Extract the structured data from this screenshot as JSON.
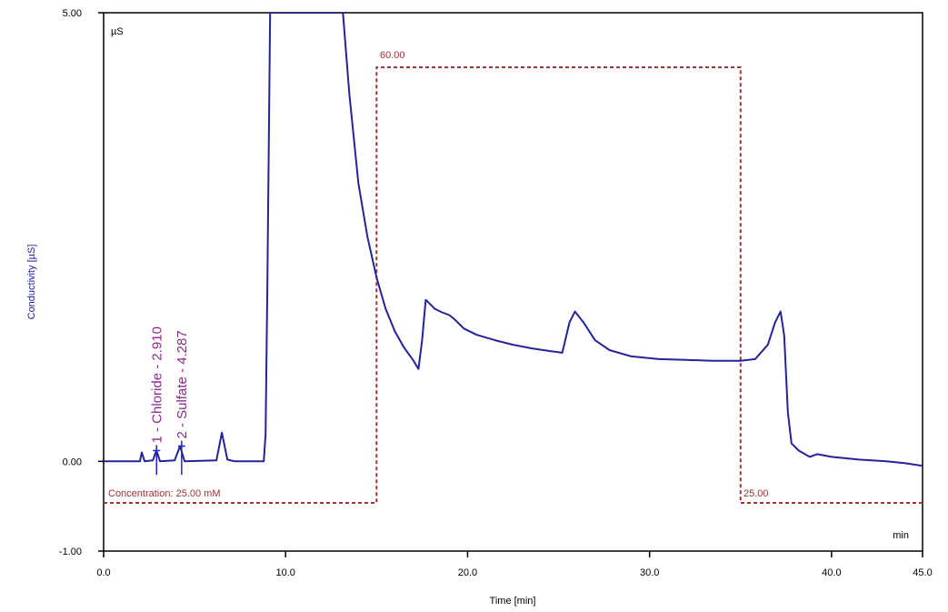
{
  "chart_data": {
    "type": "line",
    "xlabel": "Time [min]",
    "ylabel": "Conductivity [µS]",
    "unit_x": "min",
    "unit_y": "µS",
    "xlim": [
      0,
      45
    ],
    "ylim": [
      -1.0,
      5.0
    ],
    "x_ticks": [
      "0.0",
      "10.0",
      "20.0",
      "30.0",
      "40.0",
      "45.0"
    ],
    "y_ticks": [
      "-1.00",
      "0.00",
      "5.00"
    ],
    "grid": false,
    "series": [
      {
        "name": "Conductivity",
        "color": "#23239a",
        "points": [
          [
            0.0,
            0.0
          ],
          [
            2.0,
            0.0
          ],
          [
            2.1,
            0.1
          ],
          [
            2.25,
            0.0
          ],
          [
            2.7,
            0.01
          ],
          [
            2.9,
            0.12
          ],
          [
            3.1,
            0.0
          ],
          [
            3.9,
            0.01
          ],
          [
            4.2,
            0.17
          ],
          [
            4.45,
            0.0
          ],
          [
            6.2,
            0.01
          ],
          [
            6.5,
            0.32
          ],
          [
            6.8,
            0.02
          ],
          [
            7.2,
            0.0
          ],
          [
            8.8,
            0.0
          ],
          [
            8.9,
            0.3
          ],
          [
            9.0,
            2.0
          ],
          [
            9.15,
            5.0
          ],
          [
            13.15,
            5.0
          ],
          [
            13.5,
            4.1
          ],
          [
            14.0,
            3.1
          ],
          [
            14.5,
            2.5
          ],
          [
            15.0,
            2.05
          ],
          [
            15.5,
            1.7
          ],
          [
            16.0,
            1.45
          ],
          [
            16.5,
            1.27
          ],
          [
            17.0,
            1.13
          ],
          [
            17.3,
            1.03
          ],
          [
            17.5,
            1.35
          ],
          [
            17.7,
            1.8
          ],
          [
            18.2,
            1.7
          ],
          [
            18.6,
            1.66
          ],
          [
            19.0,
            1.63
          ],
          [
            19.3,
            1.58
          ],
          [
            19.8,
            1.48
          ],
          [
            20.5,
            1.41
          ],
          [
            21.5,
            1.35
          ],
          [
            22.5,
            1.3
          ],
          [
            23.5,
            1.26
          ],
          [
            24.5,
            1.23
          ],
          [
            25.2,
            1.21
          ],
          [
            25.6,
            1.55
          ],
          [
            25.9,
            1.67
          ],
          [
            26.4,
            1.54
          ],
          [
            27.0,
            1.35
          ],
          [
            27.8,
            1.24
          ],
          [
            29.0,
            1.17
          ],
          [
            30.5,
            1.14
          ],
          [
            32.0,
            1.13
          ],
          [
            33.5,
            1.12
          ],
          [
            35.0,
            1.12
          ],
          [
            35.8,
            1.14
          ],
          [
            36.5,
            1.3
          ],
          [
            36.9,
            1.55
          ],
          [
            37.2,
            1.67
          ],
          [
            37.4,
            1.4
          ],
          [
            37.6,
            0.55
          ],
          [
            37.8,
            0.2
          ],
          [
            38.2,
            0.12
          ],
          [
            38.8,
            0.05
          ],
          [
            39.2,
            0.08
          ],
          [
            40.0,
            0.05
          ],
          [
            41.5,
            0.02
          ],
          [
            43.0,
            0.0
          ],
          [
            44.0,
            -0.02
          ],
          [
            45.0,
            -0.05
          ]
        ]
      },
      {
        "name": "Concentration",
        "color": "#a43333",
        "style": "dashed",
        "points": [
          [
            0.0,
            25.0
          ],
          [
            15.0,
            25.0
          ],
          [
            15.0,
            60.0
          ],
          [
            35.0,
            60.0
          ],
          [
            35.0,
            25.0
          ],
          [
            45.0,
            25.0
          ]
        ]
      }
    ],
    "peaks": [
      {
        "number": "1",
        "name": "Chloride",
        "time": "2.910",
        "label": "1 - Chloride - 2.910"
      },
      {
        "number": "2",
        "name": "Sulfate",
        "time": "4.287",
        "label": "2 - Sulfate - 4.287"
      }
    ],
    "annotations": {
      "concentration_start": "Concentration: 25.00 mM",
      "concentration_high": "60.00",
      "concentration_end": "25.00"
    }
  }
}
